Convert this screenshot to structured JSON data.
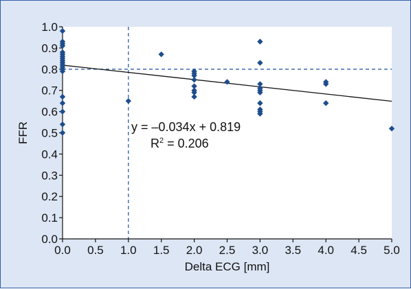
{
  "chart_data": {
    "type": "scatter",
    "title": "",
    "xlabel": "Delta ECG [mm]",
    "ylabel": "FFR",
    "xlim": [
      0,
      5.0
    ],
    "ylim": [
      0,
      1.0
    ],
    "x_ticks": [
      "0.0",
      "0.5",
      "1.0",
      "1.5",
      "2.0",
      "2.5",
      "3.0",
      "3.5",
      "4.0",
      "4.5",
      "5.0"
    ],
    "y_ticks": [
      "0.0",
      "0.1",
      "0.2",
      "0.3",
      "0.4",
      "0.5",
      "0.6",
      "0.7",
      "0.8",
      "0.9",
      "1.0"
    ],
    "grid": false,
    "legend": "none",
    "marker_color": "#1e4d8c",
    "reference_line_color": "#2f5ea8",
    "background_color": "#dde6f4",
    "plot_background": "#ffffff",
    "points": [
      [
        0,
        0.98
      ],
      [
        0,
        0.93
      ],
      [
        0,
        0.92
      ],
      [
        0,
        0.91
      ],
      [
        0,
        0.88
      ],
      [
        0,
        0.87
      ],
      [
        0,
        0.86
      ],
      [
        0,
        0.85
      ],
      [
        0,
        0.84
      ],
      [
        0,
        0.83
      ],
      [
        0,
        0.82
      ],
      [
        0,
        0.81
      ],
      [
        0,
        0.8
      ],
      [
        0,
        0.79
      ],
      [
        0,
        0.67
      ],
      [
        0,
        0.64
      ],
      [
        0,
        0.6
      ],
      [
        0,
        0.54
      ],
      [
        0,
        0.5
      ],
      [
        1.0,
        0.65
      ],
      [
        1.5,
        0.87
      ],
      [
        2.0,
        0.79
      ],
      [
        2.0,
        0.78
      ],
      [
        2.0,
        0.77
      ],
      [
        2.0,
        0.75
      ],
      [
        2.0,
        0.72
      ],
      [
        2.0,
        0.7
      ],
      [
        2.0,
        0.69
      ],
      [
        2.0,
        0.67
      ],
      [
        2.5,
        0.74
      ],
      [
        3.0,
        0.93
      ],
      [
        3.0,
        0.83
      ],
      [
        3.0,
        0.73
      ],
      [
        3.0,
        0.71
      ],
      [
        3.0,
        0.7
      ],
      [
        3.0,
        0.69
      ],
      [
        3.0,
        0.64
      ],
      [
        3.0,
        0.61
      ],
      [
        3.0,
        0.6
      ],
      [
        3.0,
        0.59
      ],
      [
        4.0,
        0.74
      ],
      [
        4.0,
        0.73
      ],
      [
        4.0,
        0.64
      ],
      [
        5.0,
        0.52
      ]
    ],
    "trendline": {
      "slope": -0.034,
      "intercept": 0.819
    },
    "reference_lines": {
      "vertical_x": 1.0,
      "horizontal_y": 0.8
    },
    "annotations": {
      "equation": "y = –0.034x + 0.819",
      "r_squared_base": "R",
      "r_squared_exp": "2",
      "r_squared_value": " = 0.206"
    }
  }
}
